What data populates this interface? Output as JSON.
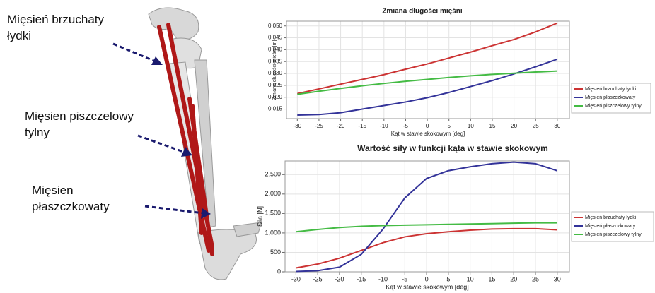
{
  "annotations": [
    {
      "lines": [
        "Mięsień brzuchaty",
        "łydki"
      ]
    },
    {
      "lines": [
        "Mięsien piszczelowy",
        "tylny"
      ]
    },
    {
      "lines": [
        "Mięsien",
        "płaszczkowaty"
      ]
    }
  ],
  "chart_data": [
    {
      "type": "line",
      "title": "Zmiana długości mięśni",
      "x_label": "Kąt w stawie skokowym [deg]",
      "y_label": "Zmiana długości mięśni [m]",
      "x": [
        -30,
        -25,
        -20,
        -15,
        -10,
        -5,
        0,
        5,
        10,
        15,
        20,
        25,
        30
      ],
      "series": [
        {
          "name": "Mięsień brzuchaty łydki",
          "color": "#cc3333",
          "values": [
            0.0215,
            0.0235,
            0.0255,
            0.0275,
            0.0295,
            0.0318,
            0.034,
            0.0365,
            0.039,
            0.0417,
            0.0443,
            0.0475,
            0.0512
          ]
        },
        {
          "name": "Mięsień płaszczkowaty",
          "color": "#333399",
          "values": [
            0.0125,
            0.0127,
            0.0135,
            0.015,
            0.0165,
            0.018,
            0.0198,
            0.022,
            0.0245,
            0.027,
            0.0298,
            0.0328,
            0.036
          ]
        },
        {
          "name": "Mięsień piszczelowy tylny",
          "color": "#44bb44",
          "values": [
            0.0212,
            0.0225,
            0.0237,
            0.0248,
            0.0258,
            0.0267,
            0.0275,
            0.0283,
            0.029,
            0.0296,
            0.0301,
            0.0306,
            0.031
          ]
        }
      ],
      "xlim": [
        -32.5,
        32.8
      ],
      "xticks": [
        -30,
        -25,
        -20,
        -15,
        -10,
        -5,
        0,
        5,
        10,
        15,
        20,
        25,
        30
      ],
      "ylim": [
        0.011,
        0.052
      ],
      "yticks": [
        0.015,
        {
          "value": 0.02,
          "label": "0.020"
        },
        0.025,
        {
          "value": 0.03,
          "label": "0.030"
        },
        0.035,
        {
          "value": 0.04,
          "label": "0.040"
        },
        0.045,
        {
          "value": 0.05,
          "label": "0.050"
        }
      ],
      "grid": true
    },
    {
      "type": "line",
      "title": "Wartość siły w funkcji kąta w stawie skokowym",
      "x_label": "Kąt w stawie skokowym [deg]",
      "y_label": "Siła [N]",
      "x": [
        -30,
        -25,
        -20,
        -15,
        -10,
        -5,
        0,
        5,
        10,
        15,
        20,
        25,
        30
      ],
      "series": [
        {
          "name": "Mięsień brzuchaty łydki",
          "color": "#cc3333",
          "values": [
            100,
            200,
            350,
            550,
            750,
            900,
            980,
            1030,
            1070,
            1100,
            1110,
            1110,
            1080
          ]
        },
        {
          "name": "Mięsień płaszczkowaty",
          "color": "#333399",
          "values": [
            10,
            30,
            120,
            450,
            1100,
            1900,
            2400,
            2600,
            2700,
            2780,
            2820,
            2780,
            2600
          ]
        },
        {
          "name": "Mięsień piszczelowy tylny",
          "color": "#44bb44",
          "values": [
            1030,
            1090,
            1140,
            1170,
            1190,
            1200,
            1210,
            1220,
            1230,
            1240,
            1250,
            1260,
            1260
          ]
        }
      ],
      "xlim": [
        -32.5,
        32.8
      ],
      "xticks": [
        -30,
        -25,
        -20,
        -15,
        -10,
        -5,
        0,
        5,
        10,
        15,
        20,
        25,
        30
      ],
      "ylim": [
        0,
        2850
      ],
      "yticks": [
        0,
        500,
        {
          "value": 1000,
          "label": "1,000"
        },
        {
          "value": 1500,
          "label": "1,500"
        },
        {
          "value": 2000,
          "label": "2,000"
        },
        {
          "value": 2500,
          "label": "2,500"
        }
      ],
      "grid": true
    }
  ]
}
